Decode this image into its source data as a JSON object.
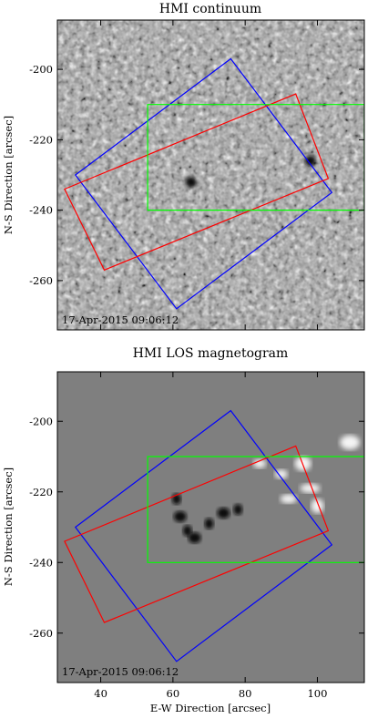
{
  "panels": [
    {
      "id": "continuum",
      "title": "HMI continuum",
      "timestamp": "17-Apr-2015 09:06:12",
      "ylabel": "N-S Direction  [arcsec]",
      "xlabel": "",
      "show_x_tick_labels": false,
      "image_kind": "granulation"
    },
    {
      "id": "magnetogram",
      "title": "HMI LOS magnetogram",
      "timestamp": "17-Apr-2015 09:06:12",
      "ylabel": "N-S Direction  [arcsec]",
      "xlabel": "E-W Direction  [arcsec]",
      "show_x_tick_labels": true,
      "image_kind": "magnetogram"
    }
  ],
  "axes": {
    "xlim": [
      28,
      113
    ],
    "ylim": [
      -274,
      -186
    ],
    "x_ticks": [
      40,
      60,
      80,
      100
    ],
    "y_ticks": [
      -200,
      -220,
      -240,
      -260
    ]
  },
  "chart_data": {
    "type": "scatter",
    "xlabel": "E-W Direction  [arcsec]",
    "ylabel": "N-S Direction  [arcsec]",
    "xlim": [
      28,
      113
    ],
    "ylim": [
      -274,
      -186
    ],
    "grid": false,
    "overlays": [
      {
        "color": "#0000ff",
        "points": [
          [
            33,
            -230
          ],
          [
            76,
            -197
          ],
          [
            104,
            -235
          ],
          [
            61,
            -268
          ]
        ]
      },
      {
        "color": "#ff0000",
        "points": [
          [
            30,
            -234
          ],
          [
            94,
            -207
          ],
          [
            103,
            -231
          ],
          [
            41,
            -257
          ]
        ]
      },
      {
        "color": "#00ff00",
        "points": [
          [
            53,
            -210
          ],
          [
            113,
            -210
          ],
          [
            113,
            -240
          ],
          [
            53,
            -240
          ]
        ]
      }
    ],
    "continuum_dark_spots": [
      [
        65,
        -232
      ],
      [
        98,
        -226
      ]
    ],
    "magnetogram_negative_spots": [
      [
        61,
        -222
      ],
      [
        62,
        -227
      ],
      [
        64,
        -231
      ],
      [
        66,
        -233
      ],
      [
        70,
        -229
      ],
      [
        74,
        -226
      ],
      [
        78,
        -225
      ]
    ],
    "magnetogram_positive_spots": [
      [
        90,
        -215
      ],
      [
        96,
        -212
      ],
      [
        98,
        -219
      ],
      [
        100,
        -224
      ],
      [
        92,
        -222
      ],
      [
        109,
        -206
      ],
      [
        84,
        -212
      ]
    ]
  }
}
